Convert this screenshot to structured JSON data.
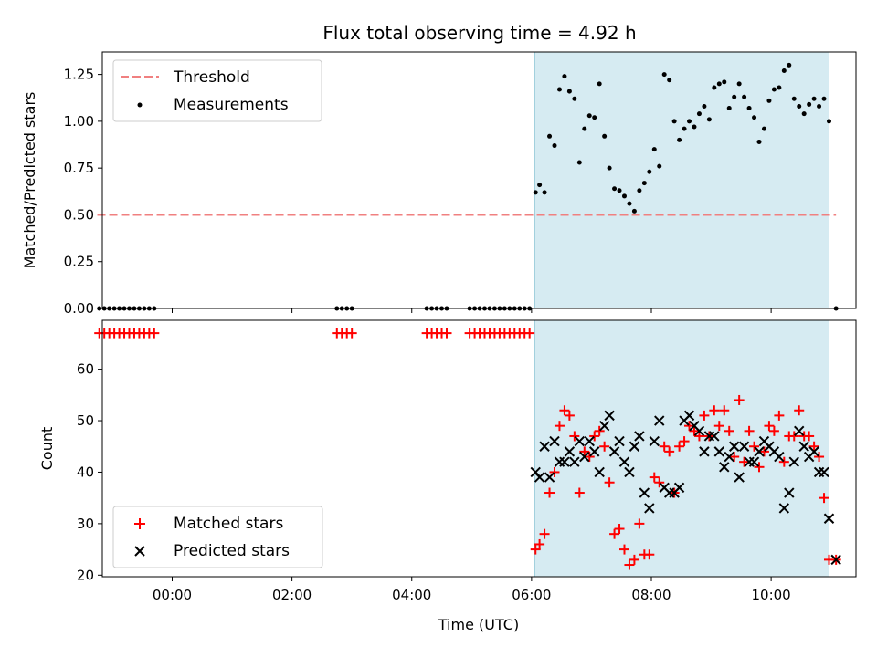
{
  "figure": {
    "title": "Flux total observing time = 4.92 h"
  },
  "chart_data": [
    {
      "type": "scatter",
      "panel": "top",
      "title": "Flux total observing time = 4.92 h",
      "xlabel": "",
      "ylabel": "Matched/Predicted stars",
      "xlim": [
        "-01:10",
        "11:25"
      ],
      "ylim": [
        0.0,
        1.37
      ],
      "yticks": [
        0.0,
        0.25,
        0.5,
        0.75,
        1.0,
        1.25
      ],
      "ytick_labels": [
        "0.00",
        "0.25",
        "0.50",
        "0.75",
        "1.00",
        "1.25"
      ],
      "grid": false,
      "legend_location": "upper left",
      "shaded_interval": {
        "start": "06:03",
        "end": "10:58",
        "color": "#add8e6"
      },
      "threshold": {
        "name": "Threshold",
        "value": 0.5,
        "x_start": "-01:15",
        "x_end": "11:05",
        "color": "#f08080",
        "style": "dashed"
      },
      "series": [
        {
          "name": "Measurements",
          "color": "#000000",
          "marker": "dot",
          "points": [
            [
              "-01:13",
              0
            ],
            [
              "-01:08",
              0
            ],
            [
              "-01:03",
              0
            ],
            [
              "-00:58",
              0
            ],
            [
              "-00:53",
              0
            ],
            [
              "-00:48",
              0
            ],
            [
              "-00:43",
              0
            ],
            [
              "-00:38",
              0
            ],
            [
              "-00:33",
              0
            ],
            [
              "-00:28",
              0
            ],
            [
              "-00:23",
              0
            ],
            [
              "-00:18",
              0
            ],
            [
              "02:45",
              0
            ],
            [
              "02:50",
              0
            ],
            [
              "02:55",
              0
            ],
            [
              "03:00",
              0
            ],
            [
              "04:15",
              0
            ],
            [
              "04:20",
              0
            ],
            [
              "04:25",
              0
            ],
            [
              "04:30",
              0
            ],
            [
              "04:35",
              0
            ],
            [
              "04:58",
              0
            ],
            [
              "05:03",
              0
            ],
            [
              "05:08",
              0
            ],
            [
              "05:13",
              0
            ],
            [
              "05:18",
              0
            ],
            [
              "05:23",
              0
            ],
            [
              "05:28",
              0
            ],
            [
              "05:33",
              0
            ],
            [
              "05:38",
              0
            ],
            [
              "05:43",
              0
            ],
            [
              "05:48",
              0
            ],
            [
              "05:53",
              0
            ],
            [
              "05:58",
              0
            ],
            [
              "06:04",
              0.62
            ],
            [
              "06:08",
              0.66
            ],
            [
              "06:13",
              0.62
            ],
            [
              "06:18",
              0.92
            ],
            [
              "06:23",
              0.87
            ],
            [
              "06:28",
              1.17
            ],
            [
              "06:33",
              1.24
            ],
            [
              "06:38",
              1.16
            ],
            [
              "06:43",
              1.12
            ],
            [
              "06:48",
              0.78
            ],
            [
              "06:53",
              0.96
            ],
            [
              "06:58",
              1.03
            ],
            [
              "07:03",
              1.02
            ],
            [
              "07:08",
              1.2
            ],
            [
              "07:13",
              0.92
            ],
            [
              "07:18",
              0.75
            ],
            [
              "07:23",
              0.64
            ],
            [
              "07:28",
              0.63
            ],
            [
              "07:33",
              0.6
            ],
            [
              "07:38",
              0.56
            ],
            [
              "07:43",
              0.52
            ],
            [
              "07:48",
              0.63
            ],
            [
              "07:53",
              0.67
            ],
            [
              "07:58",
              0.73
            ],
            [
              "08:03",
              0.85
            ],
            [
              "08:08",
              0.76
            ],
            [
              "08:13",
              1.25
            ],
            [
              "08:18",
              1.22
            ],
            [
              "08:23",
              1.0
            ],
            [
              "08:28",
              0.9
            ],
            [
              "08:33",
              0.96
            ],
            [
              "08:38",
              1.0
            ],
            [
              "08:43",
              0.97
            ],
            [
              "08:48",
              1.04
            ],
            [
              "08:53",
              1.08
            ],
            [
              "08:58",
              1.01
            ],
            [
              "09:03",
              1.18
            ],
            [
              "09:08",
              1.2
            ],
            [
              "09:13",
              1.21
            ],
            [
              "09:18",
              1.07
            ],
            [
              "09:23",
              1.13
            ],
            [
              "09:28",
              1.2
            ],
            [
              "09:33",
              1.13
            ],
            [
              "09:38",
              1.07
            ],
            [
              "09:43",
              1.02
            ],
            [
              "09:48",
              0.89
            ],
            [
              "09:53",
              0.96
            ],
            [
              "09:58",
              1.11
            ],
            [
              "10:03",
              1.17
            ],
            [
              "10:08",
              1.18
            ],
            [
              "10:13",
              1.27
            ],
            [
              "10:18",
              1.3
            ],
            [
              "10:23",
              1.12
            ],
            [
              "10:28",
              1.08
            ],
            [
              "10:33",
              1.04
            ],
            [
              "10:38",
              1.09
            ],
            [
              "10:43",
              1.12
            ],
            [
              "10:48",
              1.08
            ],
            [
              "10:53",
              1.12
            ],
            [
              "10:58",
              1.0
            ],
            [
              "11:05",
              0
            ]
          ]
        }
      ]
    },
    {
      "type": "scatter",
      "panel": "bottom",
      "xlabel": "Time (UTC)",
      "ylabel": "Count",
      "xlim": [
        "-01:10",
        "11:25"
      ],
      "ylim": [
        19.7,
        69.5
      ],
      "xticks": [
        "00:00",
        "02:00",
        "04:00",
        "06:00",
        "08:00",
        "10:00"
      ],
      "yticks": [
        20,
        30,
        40,
        50,
        60
      ],
      "grid": false,
      "legend_location": "lower left",
      "shaded_interval": {
        "start": "06:03",
        "end": "10:58",
        "color": "#add8e6"
      },
      "series": [
        {
          "name": "Matched stars",
          "color": "#ff0000",
          "marker": "plus",
          "points": [
            [
              "-01:13",
              67
            ],
            [
              "-01:08",
              67
            ],
            [
              "-01:03",
              67
            ],
            [
              "-00:58",
              67
            ],
            [
              "-00:53",
              67
            ],
            [
              "-00:48",
              67
            ],
            [
              "-00:43",
              67
            ],
            [
              "-00:38",
              67
            ],
            [
              "-00:33",
              67
            ],
            [
              "-00:28",
              67
            ],
            [
              "-00:23",
              67
            ],
            [
              "-00:18",
              67
            ],
            [
              "02:45",
              67
            ],
            [
              "02:50",
              67
            ],
            [
              "02:55",
              67
            ],
            [
              "03:00",
              67
            ],
            [
              "04:15",
              67
            ],
            [
              "04:20",
              67
            ],
            [
              "04:25",
              67
            ],
            [
              "04:30",
              67
            ],
            [
              "04:35",
              67
            ],
            [
              "04:58",
              67
            ],
            [
              "05:03",
              67
            ],
            [
              "05:08",
              67
            ],
            [
              "05:13",
              67
            ],
            [
              "05:18",
              67
            ],
            [
              "05:23",
              67
            ],
            [
              "05:28",
              67
            ],
            [
              "05:33",
              67
            ],
            [
              "05:38",
              67
            ],
            [
              "05:43",
              67
            ],
            [
              "05:48",
              67
            ],
            [
              "05:53",
              67
            ],
            [
              "05:58",
              67
            ],
            [
              "06:04",
              25
            ],
            [
              "06:08",
              26
            ],
            [
              "06:13",
              28
            ],
            [
              "06:18",
              36
            ],
            [
              "06:23",
              40
            ],
            [
              "06:28",
              49
            ],
            [
              "06:33",
              52
            ],
            [
              "06:38",
              51
            ],
            [
              "06:43",
              47
            ],
            [
              "06:48",
              36
            ],
            [
              "06:53",
              44
            ],
            [
              "06:58",
              43
            ],
            [
              "07:03",
              47
            ],
            [
              "07:08",
              48
            ],
            [
              "07:13",
              45
            ],
            [
              "07:18",
              38
            ],
            [
              "07:23",
              28
            ],
            [
              "07:28",
              29
            ],
            [
              "07:33",
              25
            ],
            [
              "07:38",
              22
            ],
            [
              "07:43",
              23
            ],
            [
              "07:48",
              30
            ],
            [
              "07:53",
              24
            ],
            [
              "07:58",
              24
            ],
            [
              "08:03",
              39
            ],
            [
              "08:08",
              38
            ],
            [
              "08:13",
              45
            ],
            [
              "08:18",
              44
            ],
            [
              "08:23",
              36
            ],
            [
              "08:28",
              45
            ],
            [
              "08:33",
              46
            ],
            [
              "08:38",
              49
            ],
            [
              "08:43",
              48
            ],
            [
              "08:48",
              47
            ],
            [
              "08:53",
              51
            ],
            [
              "08:58",
              47
            ],
            [
              "09:03",
              52
            ],
            [
              "09:08",
              49
            ],
            [
              "09:13",
              52
            ],
            [
              "09:18",
              48
            ],
            [
              "09:23",
              43
            ],
            [
              "09:28",
              54
            ],
            [
              "09:33",
              42
            ],
            [
              "09:38",
              48
            ],
            [
              "09:43",
              45
            ],
            [
              "09:48",
              41
            ],
            [
              "09:53",
              44
            ],
            [
              "09:58",
              49
            ],
            [
              "10:03",
              48
            ],
            [
              "10:08",
              51
            ],
            [
              "10:13",
              42
            ],
            [
              "10:18",
              47
            ],
            [
              "10:23",
              47
            ],
            [
              "10:28",
              52
            ],
            [
              "10:33",
              47
            ],
            [
              "10:38",
              47
            ],
            [
              "10:43",
              45
            ],
            [
              "10:48",
              43
            ],
            [
              "10:53",
              35
            ],
            [
              "10:58",
              23
            ],
            [
              "11:05",
              23
            ]
          ]
        },
        {
          "name": "Predicted stars",
          "color": "#000000",
          "marker": "x",
          "points": [
            [
              "06:04",
              40
            ],
            [
              "06:08",
              39
            ],
            [
              "06:13",
              45
            ],
            [
              "06:18",
              39
            ],
            [
              "06:23",
              46
            ],
            [
              "06:28",
              42
            ],
            [
              "06:33",
              42
            ],
            [
              "06:38",
              44
            ],
            [
              "06:43",
              42
            ],
            [
              "06:48",
              46
            ],
            [
              "06:53",
              43
            ],
            [
              "06:58",
              46
            ],
            [
              "07:03",
              44
            ],
            [
              "07:08",
              40
            ],
            [
              "07:13",
              49
            ],
            [
              "07:18",
              51
            ],
            [
              "07:23",
              44
            ],
            [
              "07:28",
              46
            ],
            [
              "07:33",
              42
            ],
            [
              "07:38",
              40
            ],
            [
              "07:43",
              45
            ],
            [
              "07:48",
              47
            ],
            [
              "07:53",
              36
            ],
            [
              "07:58",
              33
            ],
            [
              "08:03",
              46
            ],
            [
              "08:08",
              50
            ],
            [
              "08:13",
              37
            ],
            [
              "08:18",
              36
            ],
            [
              "08:23",
              36
            ],
            [
              "08:28",
              37
            ],
            [
              "08:33",
              50
            ],
            [
              "08:38",
              51
            ],
            [
              "08:43",
              49
            ],
            [
              "08:48",
              48
            ],
            [
              "08:53",
              44
            ],
            [
              "08:58",
              47
            ],
            [
              "09:03",
              47
            ],
            [
              "09:08",
              44
            ],
            [
              "09:13",
              41
            ],
            [
              "09:18",
              43
            ],
            [
              "09:23",
              45
            ],
            [
              "09:28",
              39
            ],
            [
              "09:33",
              45
            ],
            [
              "09:38",
              42
            ],
            [
              "09:43",
              42
            ],
            [
              "09:48",
              44
            ],
            [
              "09:53",
              46
            ],
            [
              "09:58",
              45
            ],
            [
              "10:03",
              44
            ],
            [
              "10:08",
              43
            ],
            [
              "10:13",
              33
            ],
            [
              "10:18",
              36
            ],
            [
              "10:23",
              42
            ],
            [
              "10:28",
              48
            ],
            [
              "10:33",
              45
            ],
            [
              "10:38",
              43
            ],
            [
              "10:43",
              44
            ],
            [
              "10:48",
              40
            ],
            [
              "10:53",
              40
            ],
            [
              "10:58",
              31
            ],
            [
              "11:05",
              23
            ]
          ]
        }
      ]
    }
  ]
}
